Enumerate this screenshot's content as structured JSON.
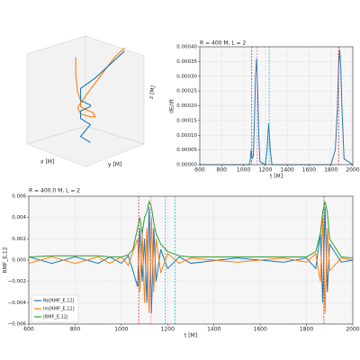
{
  "chart_data": [
    {
      "type": "line3d",
      "xlabel": "x [M]",
      "ylabel": "y [M]",
      "zlabel": "z [M]",
      "xlim": [
        -30,
        30
      ],
      "ylim": [
        -30,
        30
      ],
      "zlim": [
        -40,
        60
      ],
      "series": [
        {
          "color": "#ff7f0e",
          "x": [
            -10,
            -10,
            -8,
            -5,
            0,
            5,
            8,
            5,
            0,
            -5,
            -3,
            5,
            15,
            25,
            30
          ],
          "y": [
            0,
            0,
            0,
            0,
            -5,
            -5,
            0,
            5,
            5,
            0,
            -5,
            -5,
            0,
            5,
            10
          ],
          "z": [
            60,
            40,
            20,
            10,
            0,
            -5,
            -8,
            -10,
            -8,
            -5,
            0,
            10,
            30,
            50,
            60
          ]
        },
        {
          "color": "#1f77b4",
          "x": [
            5,
            -5,
            5,
            -5,
            0,
            5,
            0,
            -5,
            0,
            10,
            15,
            20,
            25
          ],
          "y": [
            0,
            0,
            0,
            0,
            -5,
            0,
            5,
            0,
            -5,
            0,
            5,
            10,
            15
          ],
          "z": [
            -40,
            -30,
            -20,
            -10,
            -5,
            0,
            5,
            10,
            20,
            30,
            40,
            50,
            60
          ]
        }
      ]
    },
    {
      "type": "line",
      "title": "R = 400 M, L = 2",
      "xlabel": "t [M]",
      "ylabel": "dE/dt",
      "grid": true,
      "xlim": [
        600,
        2000
      ],
      "xticks": [
        600,
        800,
        1000,
        1200,
        1400,
        1600,
        1800,
        2000
      ],
      "ylim": [
        0,
        0.0004
      ],
      "yticks": [
        {
          "value": 0,
          "label": "0.00000"
        },
        {
          "value": 5e-05,
          "label": "0.00005"
        },
        {
          "value": 0.0001,
          "label": "0.00010"
        },
        {
          "value": 0.00015,
          "label": "0.00015"
        },
        {
          "value": 0.0002,
          "label": "0.00020"
        },
        {
          "value": 0.00025,
          "label": "0.00025"
        },
        {
          "value": 0.0003,
          "label": "0.00030"
        },
        {
          "value": 0.00035,
          "label": "0.00035"
        },
        {
          "value": 0.0004,
          "label": "0.00040"
        }
      ],
      "x": [
        600,
        1000,
        1050,
        1060,
        1070,
        1080,
        1090,
        1100,
        1110,
        1120,
        1130,
        1140,
        1150,
        1200,
        1215,
        1230,
        1245,
        1260,
        1300,
        1800,
        1840,
        1860,
        1870,
        1880,
        1890,
        1900,
        1920,
        2000
      ],
      "series": [
        {
          "color": "#1f77b4",
          "values": [
            0,
            0,
            0,
            1e-05,
            5e-05,
            2e-05,
            3e-05,
            0.00015,
            0.0003,
            0.00036,
            0.00025,
            0.0001,
            1e-05,
            0,
            5e-05,
            0.00014,
            5e-05,
            0,
            0,
            0,
            5e-05,
            0.0002,
            0.00033,
            0.00039,
            0.00033,
            0.0002,
            2e-05,
            0
          ]
        }
      ],
      "vlines": [
        {
          "value": 1075,
          "color": "#d62728"
        },
        {
          "value": 1125,
          "color": "#e377c2"
        },
        {
          "value": 1235,
          "color": "#17becf"
        },
        {
          "value": 1870,
          "color": "#d62728"
        }
      ]
    },
    {
      "type": "line",
      "title": "R = 400.0 M, L = 2",
      "xlabel": "t [M]",
      "ylabel": "RMF_E,12",
      "grid": true,
      "legend": "lower-left",
      "xlim": [
        600,
        2000
      ],
      "xticks": [
        600,
        800,
        1000,
        1200,
        1400,
        1600,
        1800,
        2000
      ],
      "ylim": [
        -0.006,
        0.006
      ],
      "yticks": [
        {
          "value": -0.006,
          "label": "−0.006"
        },
        {
          "value": -0.004,
          "label": "−0.004"
        },
        {
          "value": -0.002,
          "label": "−0.002"
        },
        {
          "value": 0,
          "label": "0.000"
        },
        0.002,
        0.004,
        0.006
      ],
      "x": [
        600,
        700,
        800,
        900,
        950,
        1000,
        1030,
        1050,
        1070,
        1080,
        1090,
        1100,
        1110,
        1120,
        1130,
        1140,
        1150,
        1170,
        1200,
        1250,
        1300,
        1500,
        1700,
        1800,
        1840,
        1860,
        1870,
        1880,
        1890,
        1900,
        1950,
        2000
      ],
      "series": [
        {
          "name": "Re[RMF_E,12]",
          "color": "#1f77b4",
          "values": [
            0.0003,
            -0.0003,
            0.0003,
            -0.0003,
            0.0003,
            -0.0003,
            0.0004,
            -0.001,
            -0.0025,
            0.003,
            -0.002,
            0.002,
            -0.004,
            0.005,
            -0.005,
            0.003,
            -0.002,
            0.001,
            -0.0008,
            0.0003,
            -0.0003,
            0.0002,
            -0.0002,
            0.0002,
            -0.0008,
            0.0025,
            -0.004,
            0.005,
            -0.003,
            0.0015,
            -0.0002,
            0
          ]
        },
        {
          "name": "Im[RMF_E,12]",
          "color": "#ff7f0e",
          "values": [
            -0.0003,
            0.0003,
            -0.0003,
            0.0003,
            -0.0003,
            0.0003,
            -0.0005,
            0.0008,
            0.002,
            -0.003,
            0.0025,
            -0.004,
            0.003,
            -0.005,
            0.004,
            -0.003,
            0.002,
            -0.0012,
            0.0006,
            -0.0003,
            0.0002,
            -0.0002,
            0.0002,
            -0.0002,
            0.0006,
            -0.002,
            0.004,
            -0.005,
            0.003,
            -0.001,
            0.0002,
            0
          ]
        },
        {
          "name": "|RMF_E,12|",
          "color": "#2ca02c",
          "values": [
            0.0003,
            0.0004,
            0.0004,
            0.0004,
            0.0003,
            0.0003,
            0.0005,
            0.001,
            0.003,
            0.004,
            0.0025,
            0.004,
            0.0045,
            0.0055,
            0.005,
            0.0035,
            0.0025,
            0.0015,
            0.0008,
            0.0004,
            0.0003,
            0.0003,
            0.0003,
            0.0003,
            0.0008,
            0.0025,
            0.0045,
            0.0055,
            0.0045,
            0.002,
            0.0003,
            0.0002
          ]
        }
      ],
      "vlines": [
        {
          "value": 1075,
          "color": "#d62728"
        },
        {
          "value": 1128,
          "color": "#e377c2"
        },
        {
          "value": 1190,
          "color": "#17becf"
        },
        {
          "value": 1232,
          "color": "#17becf"
        },
        {
          "value": 1875,
          "color": "#d62728"
        }
      ]
    }
  ]
}
